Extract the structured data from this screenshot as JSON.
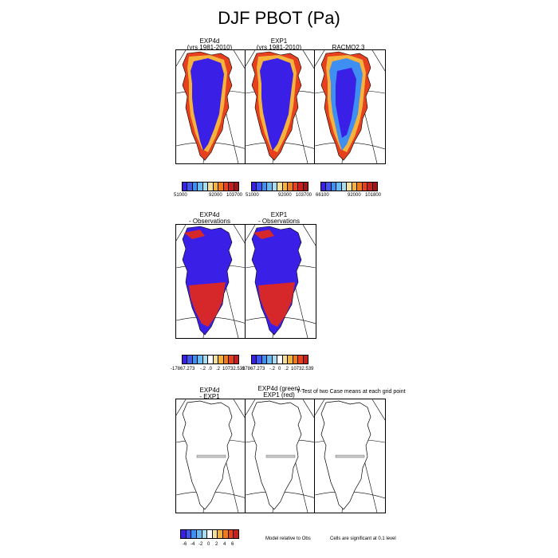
{
  "title": "DJF PBOT (Pa)",
  "row1": {
    "panels": [
      {
        "name": "EXP4d",
        "sub": "(yrs 1981-2010)",
        "variant": "model"
      },
      {
        "name": "EXP1",
        "sub": "(yrs 1981-2010)",
        "variant": "model"
      },
      {
        "name": "RACMO2.3",
        "sub": "",
        "variant": "racmo"
      }
    ],
    "colorbars": [
      {
        "labels": [
          "51000",
          "92000",
          "103700"
        ]
      },
      {
        "labels": [
          "51000",
          "92000",
          "103700"
        ]
      },
      {
        "labels": [
          "66100",
          "92000",
          "101800"
        ]
      }
    ]
  },
  "row2": {
    "panels": [
      {
        "name": "EXP4d",
        "sub": "- Observations"
      },
      {
        "name": "EXP1",
        "sub": "- Observations"
      }
    ],
    "colorbars": [
      {
        "labels": [
          "-17867.273",
          "-.2",
          ".0",
          ".2",
          "10732.539"
        ]
      },
      {
        "labels": [
          "-17867.273",
          "-.2",
          "0",
          ".2",
          "10732.539"
        ]
      }
    ]
  },
  "row3": {
    "panels": [
      {
        "name": "EXP4d",
        "sub": "- EXP1"
      },
      {
        "name": "EXP4d (green)",
        "sub": "EXP1 (red)"
      },
      {
        "name": "",
        "sub": ""
      }
    ],
    "ttest_title": "T-Test of two Case means at each grid point",
    "colorbar": {
      "labels": [
        "-6",
        "-4",
        "-2",
        "0",
        "2",
        "4",
        "6"
      ]
    },
    "note_model": "Model relative to Obs",
    "note_cells": "Cells are significant at 0.1 level"
  },
  "colors": {
    "scale": [
      "#3a1fe6",
      "#3f56f0",
      "#3f8ff2",
      "#66b9f2",
      "#a8dcf0",
      "#f2e09a",
      "#f5b23c",
      "#f07a1e",
      "#e6401e",
      "#c81e1e",
      "#a01616"
    ],
    "diff_scale": [
      "#3a1fe6",
      "#3f56f0",
      "#3f8ff2",
      "#66b9f2",
      "#a8dcf0",
      "#ffffff",
      "#f2e09a",
      "#f5b23c",
      "#f07a1e",
      "#e6401e",
      "#c81e1e"
    ],
    "deep_blue": "#3a1fe6",
    "red": "#d6282a"
  }
}
